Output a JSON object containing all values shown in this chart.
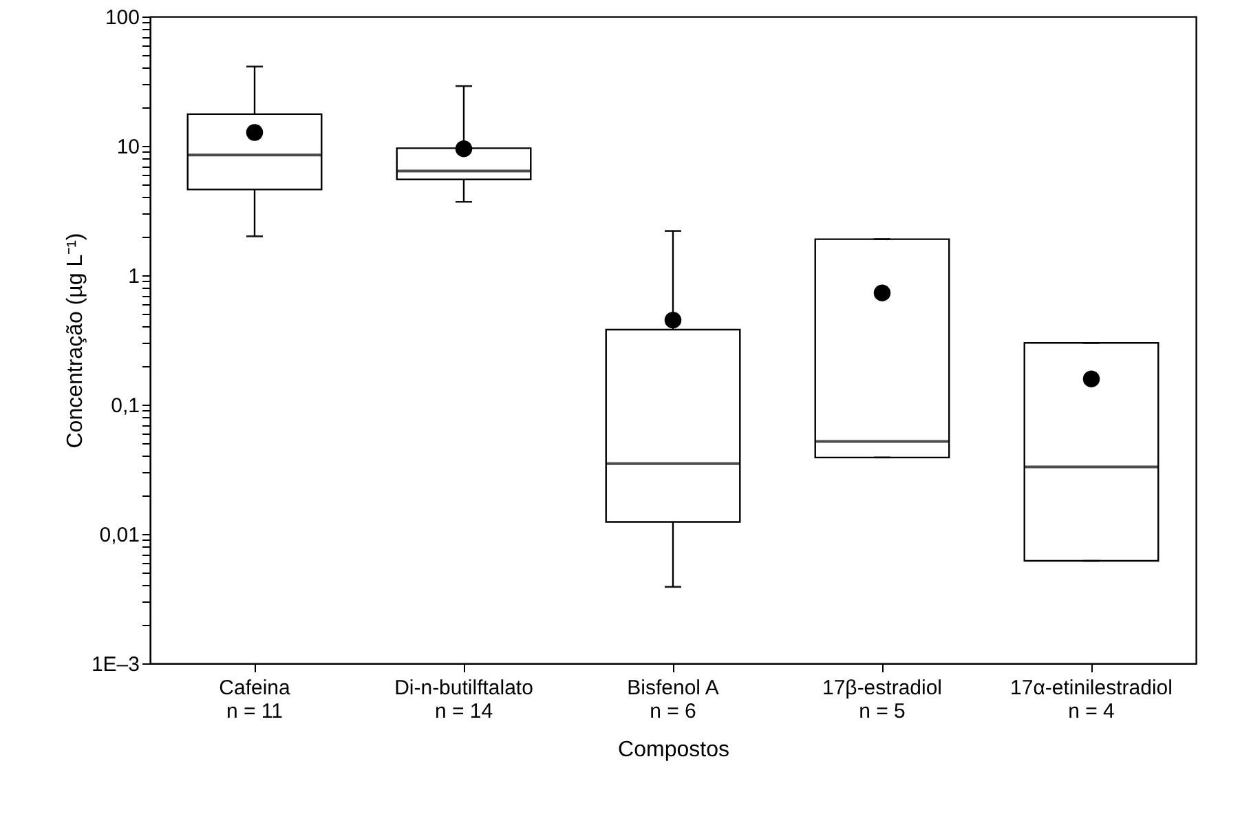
{
  "chart_data": {
    "type": "box",
    "xlabel": "Compostos",
    "ylabel": "Concentração (µg L⁻¹)",
    "categories": [
      "Cafeina\nn = 11",
      "Di-n-butilftalato\nn = 14",
      "Bisfenol A\nn = 6",
      "17β-estradiol\nn = 5",
      "17α-etinilestradiol\nn = 4"
    ],
    "boxes": [
      {
        "low": 2.0,
        "q1": 4.6,
        "median": 8.5,
        "q3": 17.6,
        "high": 41,
        "mean": 12.7
      },
      {
        "low": 3.7,
        "q1": 5.5,
        "median": 6.4,
        "q3": 9.6,
        "high": 29,
        "mean": 9.5
      },
      {
        "low": 0.0039,
        "q1": 0.0124,
        "median": 0.035,
        "q3": 0.38,
        "high": 2.2,
        "mean": 0.45
      },
      {
        "low": 0.039,
        "q1": 0.039,
        "median": 0.052,
        "q3": 1.9,
        "high": 1.9,
        "mean": 0.73
      },
      {
        "low": 0.0062,
        "q1": 0.0062,
        "median": 0.033,
        "q3": 0.3,
        "high": 0.3,
        "mean": 0.158
      }
    ],
    "log": "y",
    "ylim": [
      0.001,
      100
    ],
    "yticks": [
      {
        "value": 0.001,
        "label": "1E–3"
      },
      {
        "value": 0.002,
        "label": null
      },
      {
        "value": 0.003,
        "label": null
      },
      {
        "value": 0.004,
        "label": null
      },
      {
        "value": 0.005,
        "label": null
      },
      {
        "value": 0.006,
        "label": null
      },
      {
        "value": 0.007,
        "label": null
      },
      {
        "value": 0.008,
        "label": null
      },
      {
        "value": 0.009,
        "label": null
      },
      {
        "value": 0.01,
        "label": "0,01"
      },
      {
        "value": 0.02,
        "label": null
      },
      {
        "value": 0.03,
        "label": null
      },
      {
        "value": 0.04,
        "label": null
      },
      {
        "value": 0.05,
        "label": null
      },
      {
        "value": 0.06,
        "label": null
      },
      {
        "value": 0.07,
        "label": null
      },
      {
        "value": 0.08,
        "label": null
      },
      {
        "value": 0.09,
        "label": null
      },
      {
        "value": 0.1,
        "label": "0,1"
      },
      {
        "value": 0.2,
        "label": null
      },
      {
        "value": 0.3,
        "label": null
      },
      {
        "value": 0.4,
        "label": null
      },
      {
        "value": 0.5,
        "label": null
      },
      {
        "value": 0.6,
        "label": null
      },
      {
        "value": 0.7,
        "label": null
      },
      {
        "value": 0.8,
        "label": null
      },
      {
        "value": 0.9,
        "label": null
      },
      1,
      {
        "value": 2,
        "label": null
      },
      {
        "value": 3,
        "label": null
      },
      {
        "value": 4,
        "label": null
      },
      {
        "value": 5,
        "label": null
      },
      {
        "value": 6,
        "label": null
      },
      {
        "value": 7,
        "label": null
      },
      {
        "value": 8,
        "label": null
      },
      {
        "value": 9,
        "label": null
      },
      10,
      {
        "value": 20,
        "label": null
      },
      {
        "value": 30,
        "label": null
      },
      {
        "value": 40,
        "label": null
      },
      {
        "value": 50,
        "label": null
      },
      {
        "value": 60,
        "label": null
      },
      {
        "value": 70,
        "label": null
      },
      {
        "value": 80,
        "label": null
      },
      {
        "value": 90,
        "label": null
      },
      100
    ],
    "grid": false
  }
}
